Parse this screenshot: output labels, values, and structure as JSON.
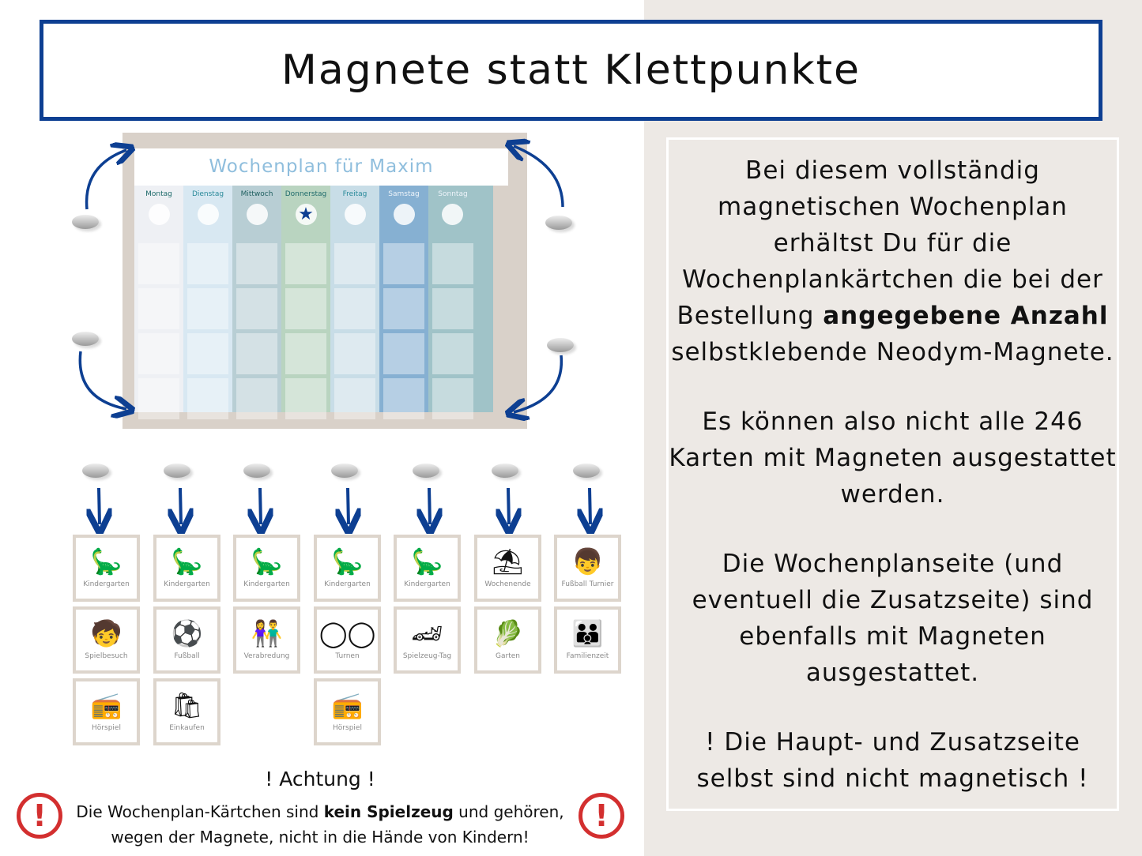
{
  "header": {
    "title": "Magnete statt Klettpunkte"
  },
  "board": {
    "title": "Wochenplan für Maxim",
    "days": [
      {
        "label": "Montag",
        "color": "#eef0f4",
        "text": "#1f6b6b"
      },
      {
        "label": "Dienstag",
        "color": "#d8e8f2",
        "text": "#2a8a9a"
      },
      {
        "label": "Mittwoch",
        "color": "#b8ced4",
        "text": "#1f5f60"
      },
      {
        "label": "Donnerstag",
        "color": "#b9d4c0",
        "text": "#1f6b6b",
        "star": true
      },
      {
        "label": "Freitag",
        "color": "#c8dde7",
        "text": "#2a8a9a"
      },
      {
        "label": "Samstag",
        "color": "#86b0d2",
        "text": "#eef4fa"
      },
      {
        "label": "Sonntag",
        "color": "#a0c3c8",
        "text": "#eef4fa"
      }
    ]
  },
  "cards": [
    {
      "label": "Kindergarten",
      "icon": "🦕"
    },
    {
      "label": "Kindergarten",
      "icon": "🦕"
    },
    {
      "label": "Kindergarten",
      "icon": "🦕"
    },
    {
      "label": "Kindergarten",
      "icon": "🦕"
    },
    {
      "label": "Kindergarten",
      "icon": "🦕"
    },
    {
      "label": "Wochenende",
      "icon": "⛱"
    },
    {
      "label": "Fußball Turnier",
      "icon": "👦"
    },
    {
      "label": "Spielbesuch",
      "icon": "🧒"
    },
    {
      "label": "Fußball",
      "icon": "⚽"
    },
    {
      "label": "Verabredung",
      "icon": "👫"
    },
    {
      "label": "Turnen",
      "icon": "◯◯"
    },
    {
      "label": "Spielzeug-Tag",
      "icon": "🏎"
    },
    {
      "label": "Garten",
      "icon": "🥬"
    },
    {
      "label": "Familienzeit",
      "icon": "👪"
    },
    {
      "label": "Hörspiel",
      "icon": "📻"
    },
    {
      "label": "Einkaufen",
      "icon": "🛍"
    },
    null,
    {
      "label": "Hörspiel",
      "icon": "📻"
    }
  ],
  "info": {
    "p1a": "Bei diesem vollständig magnetischen Wochenplan erhältst Du für die Wochenplankärtchen die  bei der Bestellung ",
    "p1b": "angegebene Anzahl",
    "p1c": " selbstklebende Neodym-Magnete.",
    "p2": "Es können also nicht alle 246 Karten mit Magneten ausgestattet werden.",
    "p3": "Die Wochenplanseite (und eventuell die Zusatzseite) sind ebenfalls mit Magneten ausgestattet.",
    "p4": "! Die Haupt- und Zusatzseite selbst sind nicht magnetisch !"
  },
  "warning": {
    "title": "! Achtung !",
    "t1": "Die Wochenplan-Kärtchen sind ",
    "t2": "kein Spielzeug",
    "t3": " und gehören, wegen der Magnete, nicht in die Hände von Kindern!",
    "icon": "!"
  },
  "colors": {
    "accent": "#0d3f92",
    "warning": "#d32f2f",
    "panel": "#ede9e5"
  }
}
